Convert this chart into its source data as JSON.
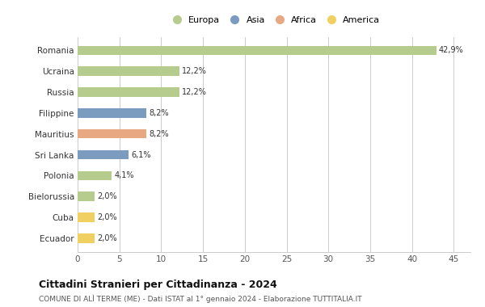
{
  "countries": [
    "Romania",
    "Ucraina",
    "Russia",
    "Filippine",
    "Mauritius",
    "Sri Lanka",
    "Polonia",
    "Bielorussia",
    "Cuba",
    "Ecuador"
  ],
  "values": [
    42.9,
    12.2,
    12.2,
    8.2,
    8.2,
    6.1,
    4.1,
    2.0,
    2.0,
    2.0
  ],
  "labels": [
    "42,9%",
    "12,2%",
    "12,2%",
    "8,2%",
    "8,2%",
    "6,1%",
    "4,1%",
    "2,0%",
    "2,0%",
    "2,0%"
  ],
  "continents": [
    "Europa",
    "Europa",
    "Europa",
    "Asia",
    "Africa",
    "Asia",
    "Europa",
    "Europa",
    "America",
    "America"
  ],
  "colors": {
    "Europa": "#b5cc8e",
    "Asia": "#7b9bbf",
    "Africa": "#e8a882",
    "America": "#f0d060"
  },
  "legend_order": [
    "Europa",
    "Asia",
    "Africa",
    "America"
  ],
  "xlim": [
    0,
    47
  ],
  "xticks": [
    0,
    5,
    10,
    15,
    20,
    25,
    30,
    35,
    40,
    45
  ],
  "title": "Cittadini Stranieri per Cittadinanza - 2024",
  "subtitle": "COMUNE DI ALÌ TERME (ME) - Dati ISTAT al 1° gennaio 2024 - Elaborazione TUTTITALIA.IT",
  "bg_color": "#ffffff",
  "grid_color": "#cccccc",
  "bar_height": 0.45
}
